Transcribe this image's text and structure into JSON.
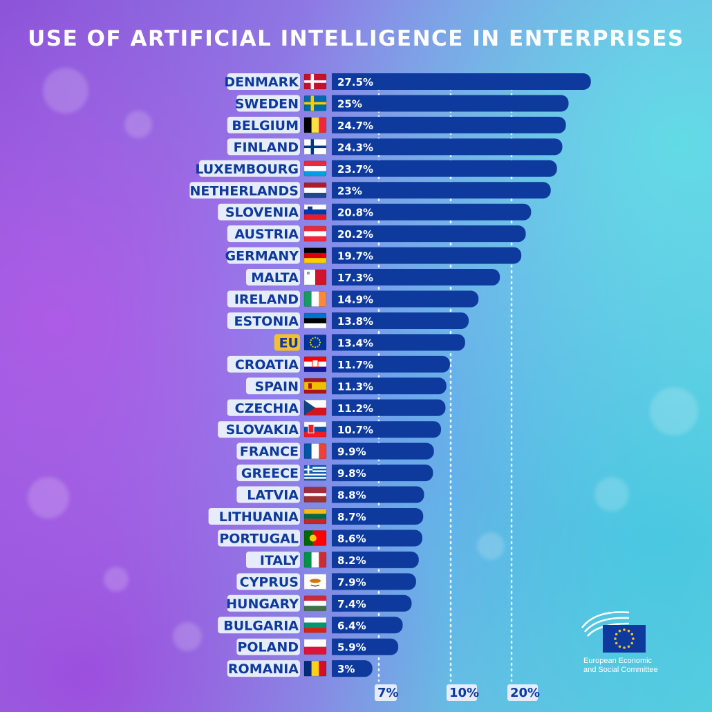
{
  "title": "USE OF ARTIFICIAL INTELLIGENCE IN ENTERPRISES",
  "organization": {
    "line1": "European Economic",
    "line2": "and Social Committee",
    "logo": "eesc-logo-icon"
  },
  "colors": {
    "bar": "#0d3a9c",
    "label_text": "#0d3a9c",
    "label_bg": "#e6ecfa",
    "eu_label_bg": "#f2c12e",
    "value_text": "#ffffff"
  },
  "chart_data": {
    "type": "bar",
    "orientation": "horizontal",
    "title": "USE OF ARTIFICIAL INTELLIGENCE IN ENTERPRISES",
    "categories": [
      "DENMARK",
      "SWEDEN",
      "BELGIUM",
      "FINLAND",
      "LUXEMBOURG",
      "NETHERLANDS",
      "SLOVENIA",
      "AUSTRIA",
      "GERMANY",
      "MALTA",
      "IRELAND",
      "ESTONIA",
      "EU",
      "CROATIA",
      "SPAIN",
      "CZECHIA",
      "SLOVAKIA",
      "FRANCE",
      "GREECE",
      "LATVIA",
      "LITHUANIA",
      "PORTUGAL",
      "ITALY",
      "CYPRUS",
      "HUNGARY",
      "BULGARIA",
      "POLAND",
      "ROMANIA"
    ],
    "values": [
      27.5,
      25,
      24.7,
      24.3,
      23.7,
      23,
      20.8,
      20.2,
      19.7,
      17.3,
      14.9,
      13.8,
      13.4,
      11.7,
      11.3,
      11.2,
      10.7,
      9.9,
      9.8,
      8.8,
      8.7,
      8.6,
      8.2,
      7.9,
      7.4,
      6.4,
      5.9,
      3
    ],
    "value_labels": [
      "27.5%",
      "25%",
      "24.7%",
      "24.3%",
      "23.7%",
      "23%",
      "20.8%",
      "20.2%",
      "19.7%",
      "17.3%",
      "14.9%",
      "13.8%",
      "13.4%",
      "11.7%",
      "11.3%",
      "11.2%",
      "10.7%",
      "9.9%",
      "9.8%",
      "8.8%",
      "8.7%",
      "8.6%",
      "8.2%",
      "7.9%",
      "7.4%",
      "6.4%",
      "5.9%",
      "3%"
    ],
    "flags": [
      "denmark-flag-icon",
      "sweden-flag-icon",
      "belgium-flag-icon",
      "finland-flag-icon",
      "luxembourg-flag-icon",
      "netherlands-flag-icon",
      "slovenia-flag-icon",
      "austria-flag-icon",
      "germany-flag-icon",
      "malta-flag-icon",
      "ireland-flag-icon",
      "estonia-flag-icon",
      "eu-flag-icon",
      "croatia-flag-icon",
      "spain-flag-icon",
      "czechia-flag-icon",
      "slovakia-flag-icon",
      "france-flag-icon",
      "greece-flag-icon",
      "latvia-flag-icon",
      "lithuania-flag-icon",
      "portugal-flag-icon",
      "italy-flag-icon",
      "cyprus-flag-icon",
      "hungary-flag-icon",
      "bulgaria-flag-icon",
      "poland-flag-icon",
      "romania-flag-icon"
    ],
    "highlight_category": "EU",
    "reference_lines": [
      {
        "label": "7%",
        "value": 7
      },
      {
        "label": "10%",
        "value": 10
      },
      {
        "label": "20%",
        "value": 20
      }
    ],
    "grid": false,
    "legend": "none"
  }
}
